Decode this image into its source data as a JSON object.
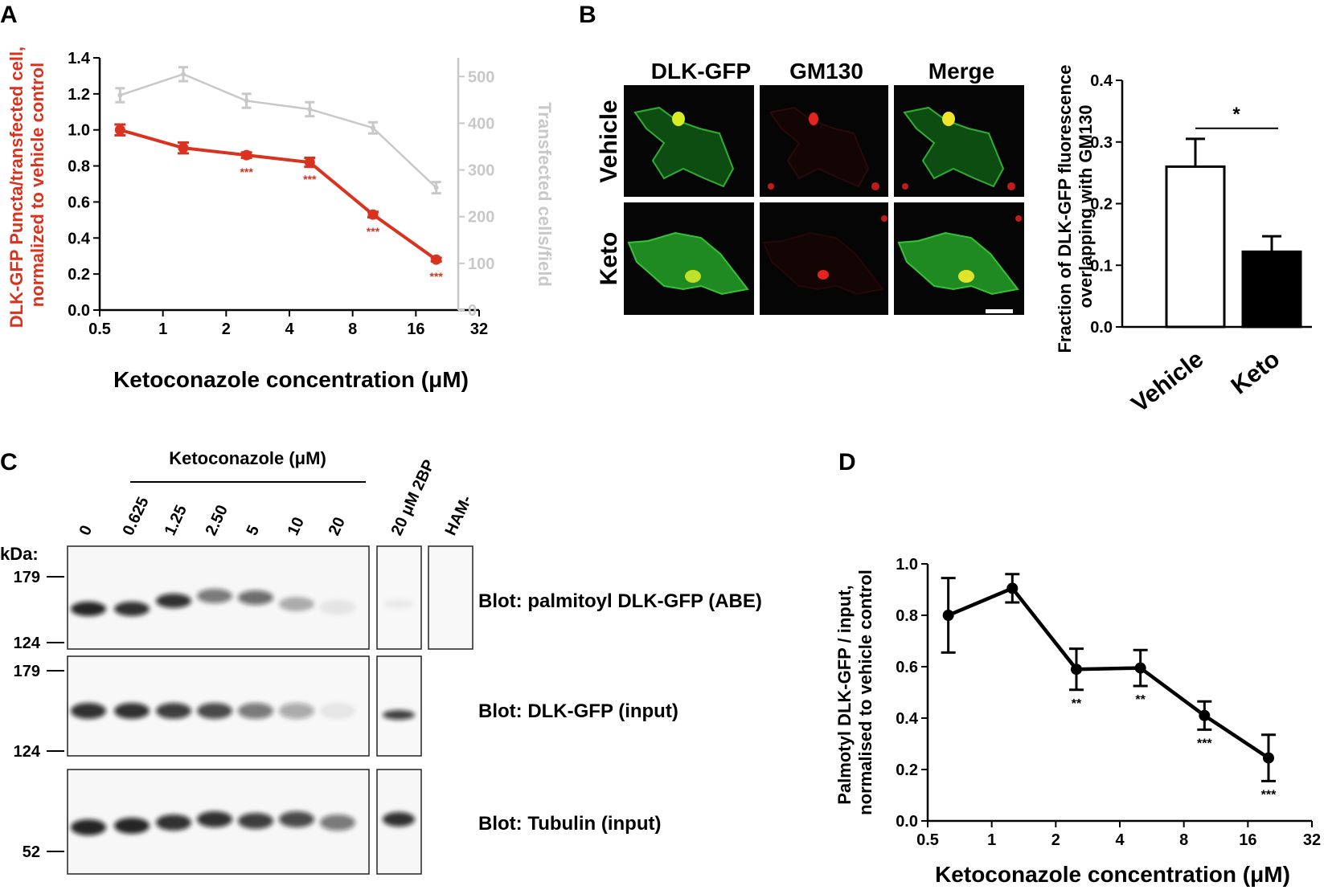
{
  "colors": {
    "red": "#d9321f",
    "grey": "#c8c8c8",
    "black": "#000000"
  },
  "chart_data": [
    {
      "panel": "A",
      "type": "line",
      "x_scale": "log2",
      "xlim": [
        0.5,
        32
      ],
      "xticks": [
        "0.5",
        "1",
        "2",
        "4",
        "8",
        "16",
        "32"
      ],
      "xlabel": "Ketoconazole concentration (μM)",
      "ylabel": "DLK-GFP Puncta/transfected cell, normalized to vehicle control",
      "ylim": [
        0,
        1.4
      ],
      "yticks": [
        "0.0",
        "0.2",
        "0.4",
        "0.6",
        "0.8",
        "1.0",
        "1.2",
        "1.4"
      ],
      "y2label": "Transfected cells/field",
      "y2lim": [
        0,
        540
      ],
      "y2ticks": [
        "0",
        "100",
        "200",
        "300",
        "400",
        "500"
      ],
      "series": [
        {
          "color": "#d9321f",
          "axis": "left",
          "x": [
            0.625,
            1.25,
            2.5,
            5,
            10,
            20
          ],
          "y": [
            1.0,
            0.9,
            0.86,
            0.82,
            0.53,
            0.28
          ],
          "err": [
            0.03,
            0.03,
            0.015,
            0.025,
            0.015,
            0.01
          ],
          "sig": [
            "",
            "",
            "***",
            "***",
            "***",
            "***"
          ]
        },
        {
          "color": "#c8c8c8",
          "axis": "right",
          "x": [
            0.625,
            1.25,
            2.5,
            5,
            10,
            20
          ],
          "y": [
            460,
            505,
            448,
            430,
            390,
            262
          ],
          "err": [
            15,
            15,
            15,
            15,
            12,
            12
          ]
        }
      ]
    },
    {
      "panel": "B",
      "type": "bar",
      "categories": [
        "Vehicle",
        "Keto"
      ],
      "values": [
        0.26,
        0.122
      ],
      "err": [
        0.045,
        0.025
      ],
      "colors": [
        "#ffffff",
        "#000000"
      ],
      "ylabel": "Fraction of DLK-GFP fluorescence overlapping with GM130",
      "ylim": [
        0,
        0.4
      ],
      "yticks": [
        "0.0",
        "0.1",
        "0.2",
        "0.3",
        "0.4"
      ],
      "sig": "*"
    },
    {
      "panel": "D",
      "type": "line",
      "x_scale": "log2",
      "xlim": [
        0.5,
        32
      ],
      "xticks": [
        "0.5",
        "1",
        "2",
        "4",
        "8",
        "16",
        "32"
      ],
      "xlabel": "Ketoconazole concentration (μM)",
      "ylabel": "Palmotyl DLK-GFP / input, normalised to vehicle control",
      "ylim": [
        0,
        1.0
      ],
      "yticks": [
        "0.0",
        "0.2",
        "0.4",
        "0.6",
        "0.8",
        "1.0"
      ],
      "series": [
        {
          "color": "#000000",
          "x": [
            0.625,
            1.25,
            2.5,
            5,
            10,
            20
          ],
          "y": [
            0.8,
            0.905,
            0.59,
            0.595,
            0.41,
            0.245
          ],
          "err": [
            0.145,
            0.055,
            0.08,
            0.07,
            0.055,
            0.09
          ],
          "sig": [
            "",
            "",
            "**",
            "**",
            "***",
            "***"
          ]
        }
      ]
    }
  ],
  "panel_letters": {
    "a": "A",
    "b": "B",
    "c": "C",
    "d": "D"
  },
  "micrographs": {
    "columns": [
      "DLK-GFP",
      "GM130",
      "Merge"
    ],
    "rows": [
      "Vehicle",
      "Keto"
    ]
  },
  "blot": {
    "header": "Ketoconazole (μM)",
    "lanes": [
      "0",
      "0.625",
      "1.25",
      "2.50",
      "5",
      "10",
      "20"
    ],
    "extra_lanes": [
      "20 μM 2BP",
      "HAM-"
    ],
    "kda_label": "kDa:",
    "markers": [
      "179",
      "124",
      "179",
      "124",
      "52"
    ],
    "blot_labels": [
      "Blot: palmitoyl DLK-GFP (ABE)",
      "Blot: DLK-GFP (input)",
      "Blot: Tubulin (input)"
    ],
    "abe_band_intensity": [
      0.9,
      0.85,
      0.85,
      0.55,
      0.6,
      0.3,
      0.08
    ],
    "abe_2bp_intensity": 0.05,
    "input_band_intensity": [
      0.85,
      0.85,
      0.8,
      0.75,
      0.55,
      0.35,
      0.08
    ],
    "input_2bp_intensity": 0.8,
    "tubulin_band_intensity": [
      0.9,
      0.9,
      0.85,
      0.85,
      0.8,
      0.75,
      0.55
    ],
    "tubulin_2bp_intensity": 0.85
  }
}
